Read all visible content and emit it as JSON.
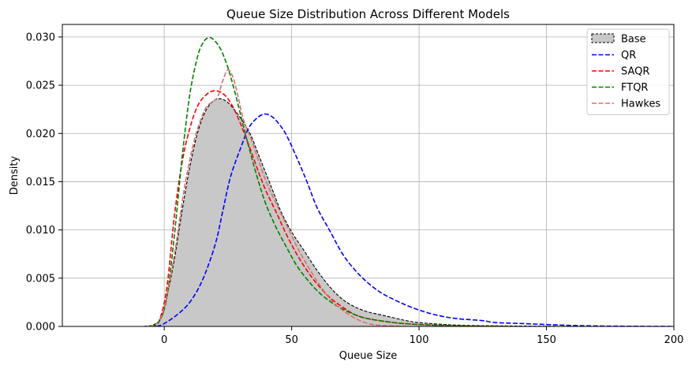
{
  "chart_data": {
    "type": "area",
    "title": "Queue Size Distribution Across Different Models",
    "xlabel": "Queue Size",
    "ylabel": "Density",
    "xlim": [
      -40,
      200
    ],
    "ylim": [
      0,
      0.0313
    ],
    "xticks": [
      0,
      50,
      100,
      150,
      200
    ],
    "yticks": [
      0.0,
      0.005,
      0.01,
      0.015,
      0.02,
      0.025,
      0.03
    ],
    "xtick_labels": [
      "0",
      "50",
      "100",
      "150",
      "200"
    ],
    "ytick_labels": [
      "0.000",
      "0.005",
      "0.010",
      "0.015",
      "0.020",
      "0.025",
      "0.030"
    ],
    "grid": true,
    "legend_position": "top-right",
    "series": [
      {
        "name": "Base",
        "style": "filled-dashed",
        "color": "#000000",
        "fill": "#c8c8c8",
        "points": [
          [
            -8,
            0
          ],
          [
            -4,
            0.0002
          ],
          [
            -1,
            0.001
          ],
          [
            1,
            0.003
          ],
          [
            4,
            0.007
          ],
          [
            7,
            0.012
          ],
          [
            10,
            0.0165
          ],
          [
            13,
            0.02
          ],
          [
            16,
            0.0222
          ],
          [
            19,
            0.0233
          ],
          [
            22,
            0.0236
          ],
          [
            25,
            0.0232
          ],
          [
            28,
            0.0223
          ],
          [
            31,
            0.0212
          ],
          [
            34,
            0.0198
          ],
          [
            37,
            0.0178
          ],
          [
            40,
            0.0158
          ],
          [
            43,
            0.0138
          ],
          [
            46,
            0.0118
          ],
          [
            50,
            0.0098
          ],
          [
            55,
            0.0078
          ],
          [
            60,
            0.0058
          ],
          [
            65,
            0.0041
          ],
          [
            70,
            0.0028
          ],
          [
            75,
            0.002
          ],
          [
            80,
            0.0015
          ],
          [
            85,
            0.0012
          ],
          [
            90,
            0.0009
          ],
          [
            95,
            0.0006
          ],
          [
            100,
            0.0004
          ],
          [
            110,
            0.0002
          ],
          [
            120,
            0.0001
          ],
          [
            135,
            5e-05
          ],
          [
            160,
            0
          ]
        ]
      },
      {
        "name": "QR",
        "style": "dashed",
        "color": "#0000ff",
        "points": [
          [
            -3,
            0
          ],
          [
            0,
            0.0003
          ],
          [
            5,
            0.0012
          ],
          [
            10,
            0.0025
          ],
          [
            15,
            0.0048
          ],
          [
            20,
            0.0085
          ],
          [
            23,
            0.012
          ],
          [
            26,
            0.0155
          ],
          [
            30,
            0.0185
          ],
          [
            33,
            0.0205
          ],
          [
            36,
            0.0215
          ],
          [
            39,
            0.022
          ],
          [
            42,
            0.0218
          ],
          [
            45,
            0.021
          ],
          [
            48,
            0.0198
          ],
          [
            52,
            0.0175
          ],
          [
            56,
            0.015
          ],
          [
            60,
            0.0123
          ],
          [
            65,
            0.0099
          ],
          [
            70,
            0.0075
          ],
          [
            75,
            0.0058
          ],
          [
            80,
            0.0045
          ],
          [
            85,
            0.0035
          ],
          [
            90,
            0.0028
          ],
          [
            95,
            0.0022
          ],
          [
            100,
            0.0017
          ],
          [
            105,
            0.0013
          ],
          [
            110,
            0.001
          ],
          [
            115,
            0.0008
          ],
          [
            120,
            0.0007
          ],
          [
            125,
            0.0006
          ],
          [
            130,
            0.0004
          ],
          [
            140,
            0.0003
          ],
          [
            150,
            0.0002
          ],
          [
            160,
            0.0001
          ],
          [
            175,
            3e-05
          ],
          [
            200,
            0
          ]
        ]
      },
      {
        "name": "SAQR",
        "style": "dashed",
        "color": "#ff0000",
        "points": [
          [
            -5,
            0
          ],
          [
            -2,
            0.0006
          ],
          [
            1,
            0.004
          ],
          [
            4,
            0.0115
          ],
          [
            7,
            0.017
          ],
          [
            10,
            0.0205
          ],
          [
            13,
            0.0228
          ],
          [
            16,
            0.0239
          ],
          [
            19,
            0.0244
          ],
          [
            22,
            0.0243
          ],
          [
            25,
            0.0236
          ],
          [
            28,
            0.0222
          ],
          [
            31,
            0.0203
          ],
          [
            34,
            0.0182
          ],
          [
            37,
            0.016
          ],
          [
            40,
            0.014
          ],
          [
            44,
            0.0118
          ],
          [
            48,
            0.0095
          ],
          [
            52,
            0.0075
          ],
          [
            56,
            0.0058
          ],
          [
            60,
            0.0044
          ],
          [
            65,
            0.003
          ],
          [
            70,
            0.002
          ],
          [
            75,
            0.0012
          ],
          [
            80,
            0.0008
          ],
          [
            90,
            0.0004
          ],
          [
            100,
            0.0002
          ],
          [
            115,
            6e-05
          ],
          [
            135,
            0
          ]
        ]
      },
      {
        "name": "FTQR",
        "style": "dashed",
        "color": "#008000",
        "points": [
          [
            -5,
            0
          ],
          [
            -2,
            0.0005
          ],
          [
            1,
            0.003
          ],
          [
            4,
            0.0095
          ],
          [
            7,
            0.0175
          ],
          [
            10,
            0.024
          ],
          [
            13,
            0.0279
          ],
          [
            15,
            0.0293
          ],
          [
            17,
            0.0299
          ],
          [
            19,
            0.0298
          ],
          [
            22,
            0.0288
          ],
          [
            25,
            0.0268
          ],
          [
            28,
            0.024
          ],
          [
            31,
            0.0208
          ],
          [
            34,
            0.0178
          ],
          [
            37,
            0.015
          ],
          [
            40,
            0.0126
          ],
          [
            44,
            0.0102
          ],
          [
            48,
            0.0082
          ],
          [
            52,
            0.0063
          ],
          [
            56,
            0.0049
          ],
          [
            60,
            0.0037
          ],
          [
            65,
            0.0026
          ],
          [
            70,
            0.0018
          ],
          [
            75,
            0.0012
          ],
          [
            80,
            0.0008
          ],
          [
            90,
            0.0004
          ],
          [
            100,
            0.0002
          ],
          [
            115,
            6e-05
          ],
          [
            135,
            0
          ]
        ]
      },
      {
        "name": "Hawkes",
        "style": "dashed",
        "color": "#d97070",
        "points": [
          [
            -6,
            0
          ],
          [
            -3,
            0.0003
          ],
          [
            0,
            0.002
          ],
          [
            4,
            0.0075
          ],
          [
            8,
            0.0145
          ],
          [
            12,
            0.0195
          ],
          [
            16,
            0.0225
          ],
          [
            19,
            0.0233
          ],
          [
            21,
            0.0238
          ],
          [
            23,
            0.0255
          ],
          [
            25,
            0.0266
          ],
          [
            27,
            0.0258
          ],
          [
            29,
            0.0238
          ],
          [
            31,
            0.0215
          ],
          [
            34,
            0.0195
          ],
          [
            37,
            0.0172
          ],
          [
            40,
            0.015
          ],
          [
            44,
            0.0127
          ],
          [
            48,
            0.0105
          ],
          [
            52,
            0.0083
          ],
          [
            56,
            0.0064
          ],
          [
            60,
            0.0047
          ],
          [
            64,
            0.0032
          ],
          [
            68,
            0.0021
          ],
          [
            72,
            0.0013
          ],
          [
            76,
            0.0007
          ],
          [
            80,
            0.0003
          ],
          [
            85,
            0.0001
          ],
          [
            95,
            0
          ]
        ]
      }
    ]
  }
}
